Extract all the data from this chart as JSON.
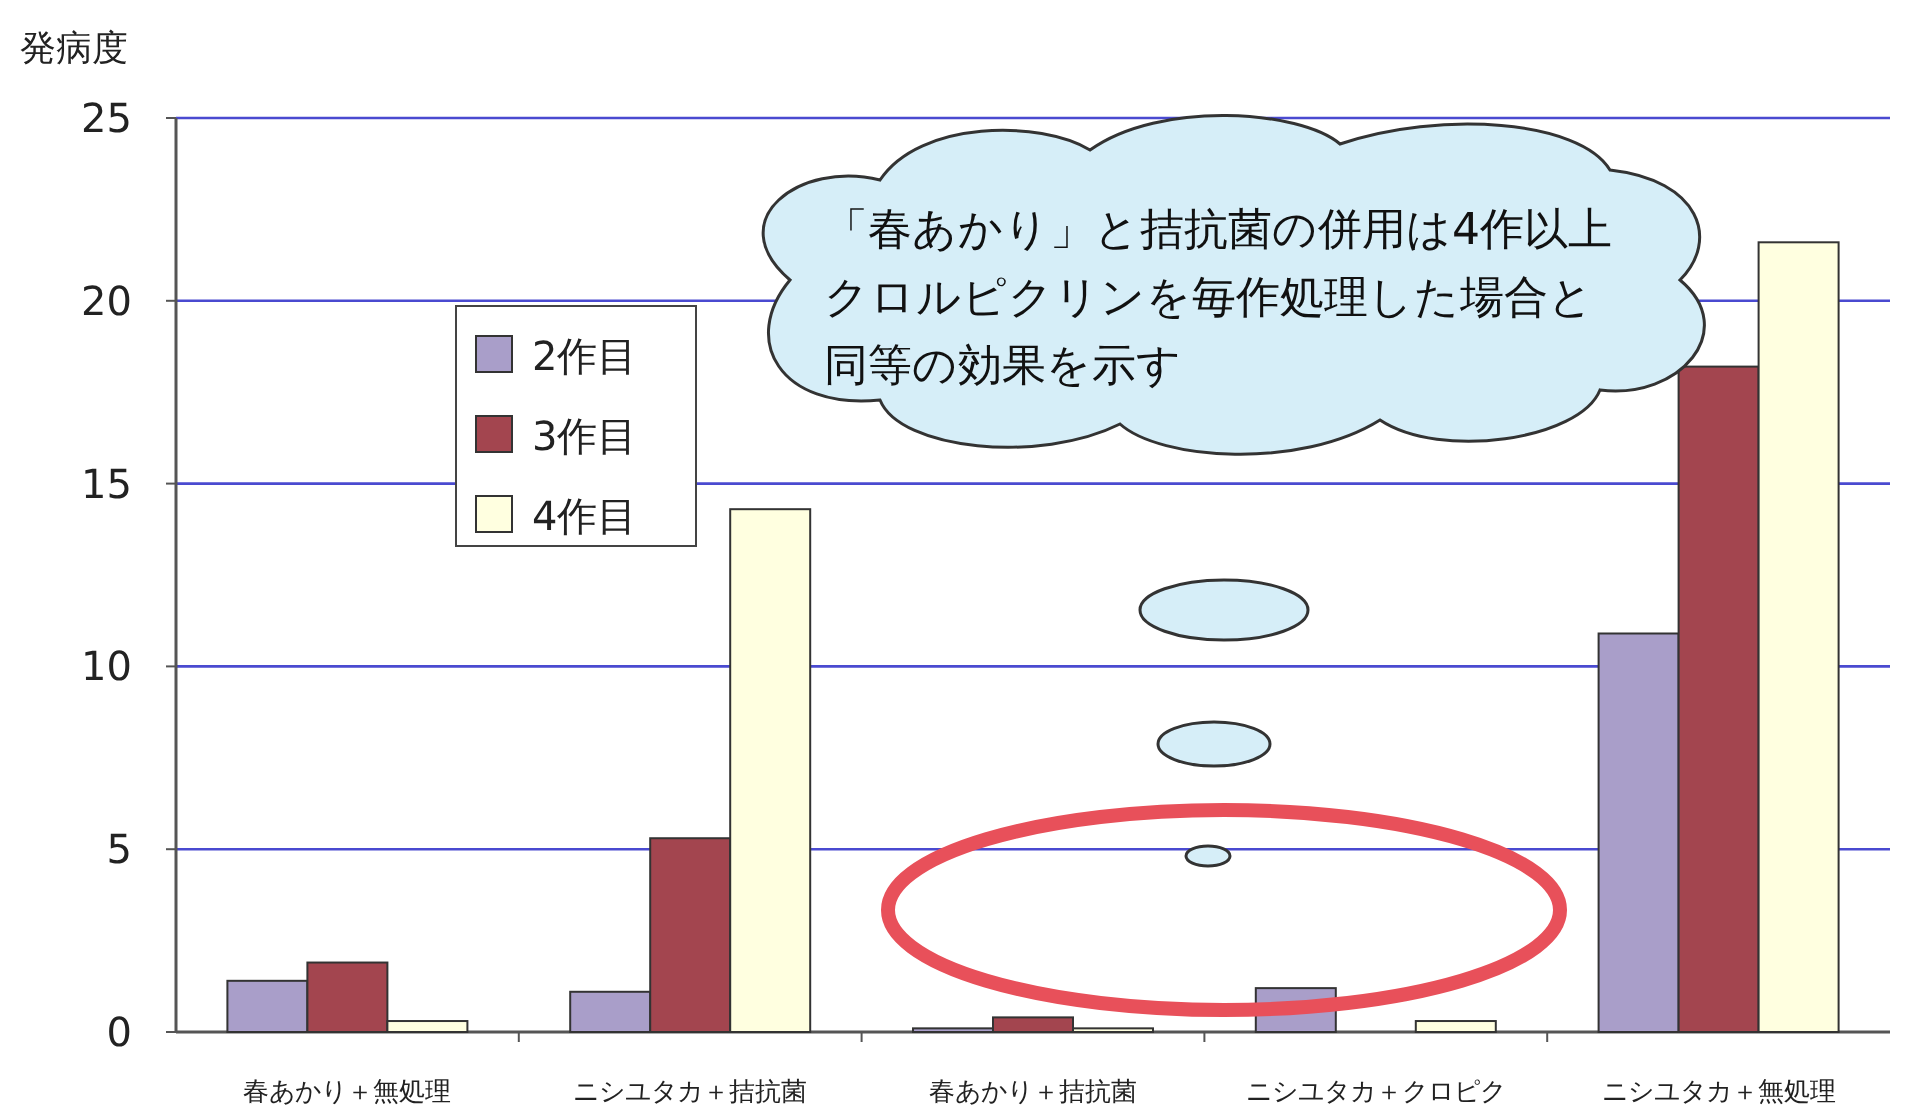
{
  "chart_data": {
    "type": "bar",
    "ylabel": "発病度",
    "categories": [
      "春あかり＋無処理",
      "ニシユタカ＋拮抗菌",
      "春あかり＋拮抗菌",
      "ニシユタカ＋クロピク",
      "ニシユタカ＋無処理"
    ],
    "series": [
      {
        "name": "2作目",
        "color": "#a99ec9",
        "values": [
          1.4,
          1.1,
          0.1,
          1.2,
          10.9
        ]
      },
      {
        "name": "3作目",
        "color": "#a3454f",
        "values": [
          1.9,
          5.3,
          0.4,
          0,
          18.2
        ]
      },
      {
        "name": "4作目",
        "color": "#ffffe0",
        "values": [
          0.3,
          14.3,
          0.1,
          0.3,
          21.6
        ]
      }
    ],
    "ylim": [
      0,
      25
    ],
    "yticks": [
      0,
      5,
      10,
      15,
      20,
      25
    ],
    "grid": "y",
    "legend": "top left",
    "annotations": [
      "「春あかり」と拮抗菌の併用は4作以上クロルピクリンを毎作処理した場合と同等の効果を示す"
    ]
  }
}
